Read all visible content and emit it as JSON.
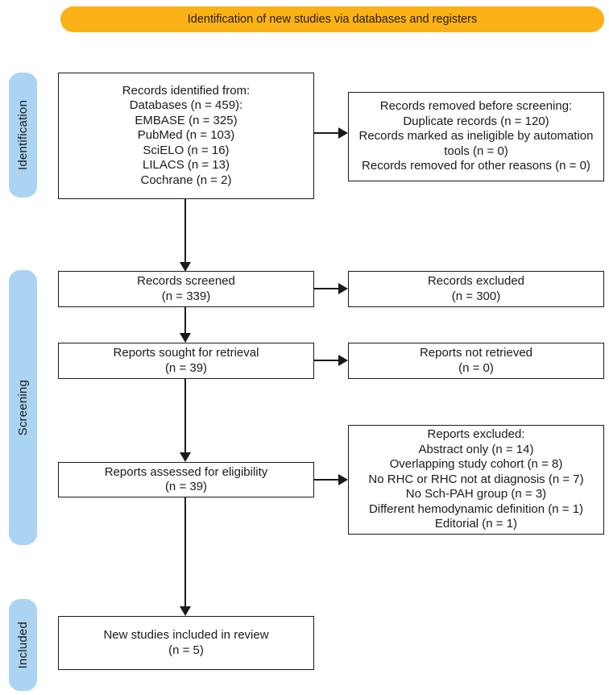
{
  "banner": {
    "label": "Identification of new studies via databases and registers"
  },
  "sidebar": {
    "identification": "Identification",
    "screening": "Screening",
    "included": "Included"
  },
  "boxes": {
    "records_identified": {
      "lines": [
        "Records identified from:",
        "Databases (n = 459):",
        "EMBASE (n = 325)",
        "PubMed (n = 103)",
        "SciELO (n = 16)",
        "LILACS (n = 13)",
        "Cochrane (n = 2)"
      ]
    },
    "records_removed": {
      "lines": [
        "Records removed before screening:",
        "Duplicate records (n = 120)",
        "Records marked as ineligible by automation tools (n = 0)",
        "Records removed for other reasons (n = 0)"
      ]
    },
    "records_screened": {
      "lines": [
        "Records screened",
        "(n = 339)"
      ]
    },
    "records_excluded": {
      "lines": [
        "Records excluded",
        "(n = 300)"
      ]
    },
    "reports_sought": {
      "lines": [
        "Reports sought for retrieval",
        "(n = 39)"
      ]
    },
    "reports_not_retrieved": {
      "lines": [
        "Reports not retrieved",
        "(n = 0)"
      ]
    },
    "reports_assessed": {
      "lines": [
        "Reports assessed for eligibility",
        "(n = 39)"
      ]
    },
    "reports_excluded": {
      "lines": [
        "Reports excluded:",
        "Abstract only (n = 14)",
        "Overlapping study cohort (n = 8)",
        "No RHC or RHC not at diagnosis (n = 7)",
        "No Sch-PAH group (n = 3)",
        "Different hemodynamic definition (n = 1)",
        "Editorial (n = 1)"
      ]
    },
    "new_studies": {
      "lines": [
        "New studies included in review",
        "(n = 5)"
      ]
    }
  },
  "colors": {
    "banner_bg": "#FAB116",
    "stage_bg": "#ABD4F2",
    "box_border": "#1A1A1A",
    "text": "#1A1A1A"
  }
}
